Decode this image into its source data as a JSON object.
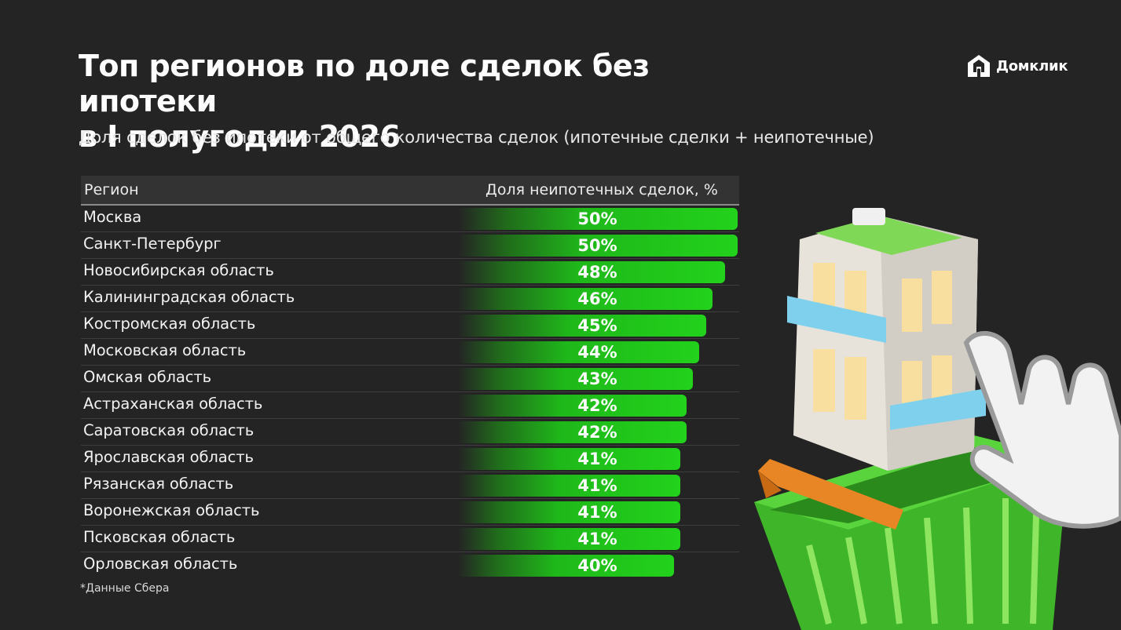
{
  "header": {
    "title_line1": "Топ регионов по доле сделок без ипотеки",
    "title_line2": "в I полугодии 2026",
    "subtitle": "Доля сделок без ипотеки от общего количества сделок (ипотечные сделки + неипотечные)"
  },
  "logo": {
    "text": "Домклик",
    "icon": "domclick-house-icon"
  },
  "chart_data": {
    "type": "bar",
    "columns": [
      "Регион",
      "Доля неипотечных сделок, %"
    ],
    "categories": [
      "Москва",
      "Санкт-Петербург",
      "Новосибирская область",
      "Калининградская область",
      "Костромская область",
      "Московская область",
      "Омская область",
      "Астраханская область",
      "Саратовская область",
      "Ярославская область",
      "Рязанская область",
      "Воронежская область",
      "Псковская область",
      "Орловская область"
    ],
    "values": [
      50,
      50,
      48,
      46,
      45,
      44,
      43,
      42,
      42,
      41,
      41,
      41,
      41,
      40
    ],
    "value_labels": [
      "50%",
      "50%",
      "48%",
      "46%",
      "45%",
      "44%",
      "43%",
      "42%",
      "42%",
      "41%",
      "41%",
      "41%",
      "41%",
      "40%"
    ],
    "bar_color": "#22d21b"
  },
  "footnote": "*Данные Сбера",
  "colors": {
    "background": "#242424",
    "accent": "#22d21b",
    "header_bg": "#333333"
  }
}
